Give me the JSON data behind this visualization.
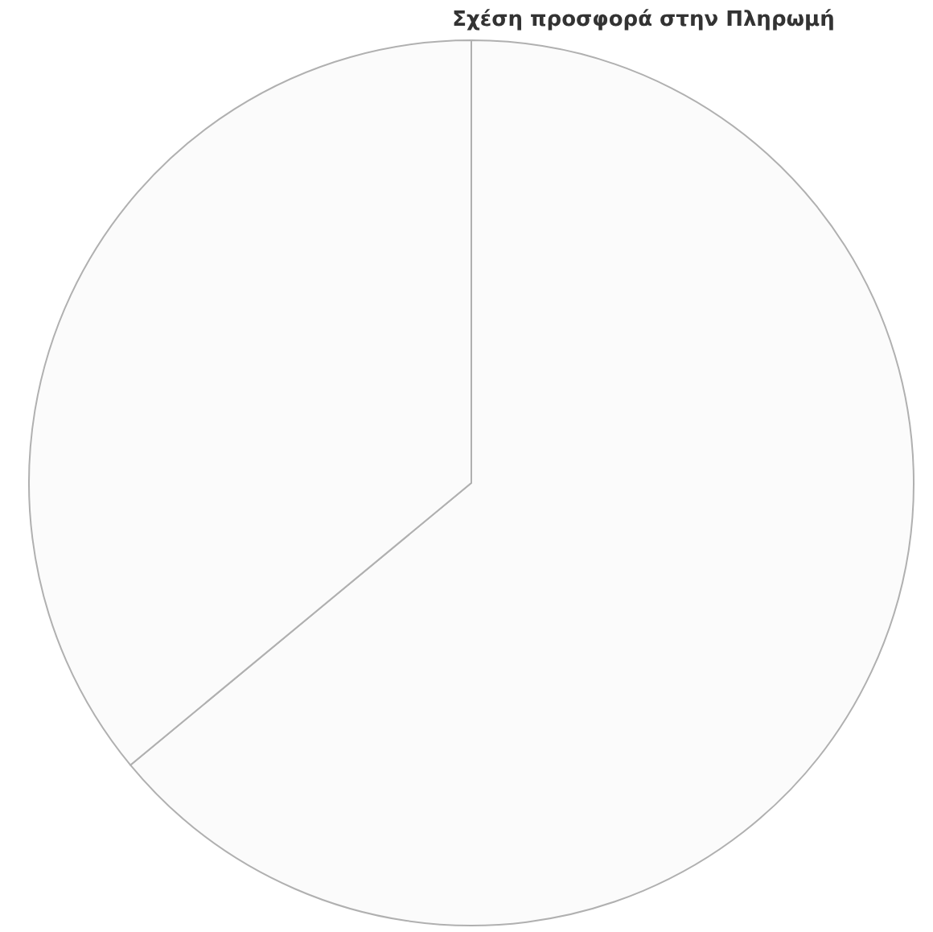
{
  "chart_data": {
    "type": "pie",
    "title": "Σχέση προσφορά στην Πληρωμή",
    "categories": [
      null,
      null
    ],
    "values": [
      64,
      36
    ],
    "colors": [
      "#fbfbfb",
      "#fbfbfb"
    ]
  }
}
